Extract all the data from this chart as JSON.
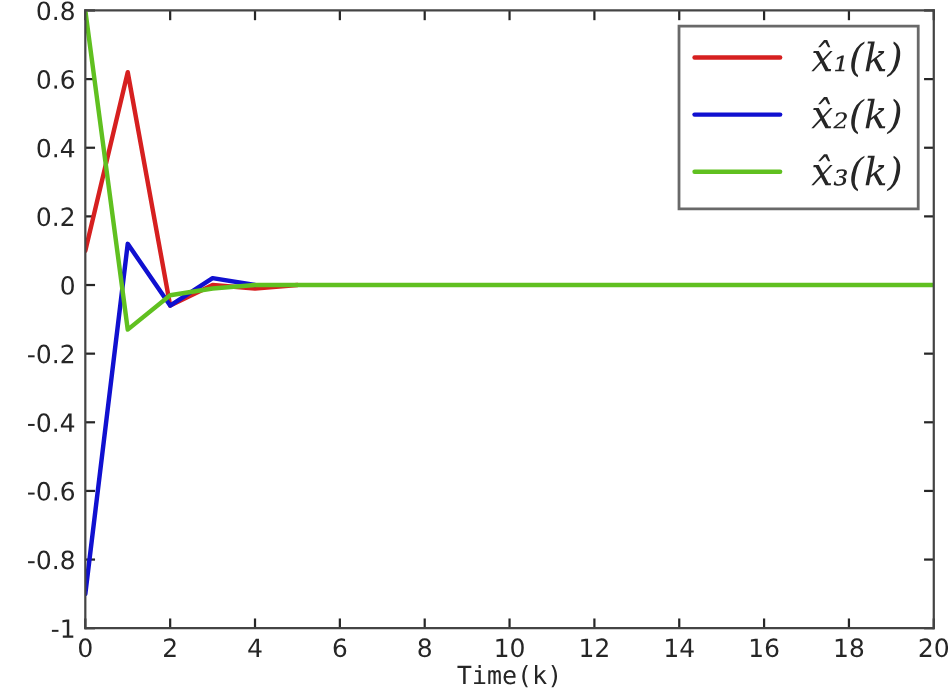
{
  "chart_data": {
    "type": "line",
    "xlabel": "Time(k)",
    "x": [
      0,
      1,
      2,
      3,
      4,
      5,
      6,
      7,
      8,
      9,
      10,
      11,
      12,
      13,
      14,
      15,
      16,
      17,
      18,
      19,
      20
    ],
    "series": [
      {
        "name": "x̂₁(k)",
        "color": "#d62020",
        "values": [
          0.1,
          0.62,
          -0.06,
          0.0,
          -0.01,
          0,
          null,
          null,
          null,
          null,
          null,
          null,
          null,
          null,
          null,
          null,
          null,
          null,
          null,
          null,
          null
        ]
      },
      {
        "name": "x̂₂(k)",
        "color": "#1010d0",
        "values": [
          -0.9,
          0.12,
          -0.06,
          0.02,
          0.0,
          null,
          null,
          null,
          null,
          null,
          null,
          null,
          null,
          null,
          null,
          null,
          null,
          null,
          null,
          null,
          null
        ]
      },
      {
        "name": "x̂₃(k)",
        "color": "#60c020",
        "values": [
          0.8,
          -0.13,
          -0.03,
          -0.01,
          0,
          0,
          0,
          0,
          0,
          0,
          0,
          0,
          0,
          0,
          0,
          0,
          0,
          0,
          0,
          0,
          0
        ]
      }
    ],
    "xlim": [
      0,
      20
    ],
    "xticks": [
      0,
      2,
      4,
      6,
      8,
      10,
      12,
      14,
      16,
      18,
      20
    ],
    "ylim": [
      -1,
      0.8
    ],
    "yticks": [
      -1,
      -0.8,
      -0.6,
      -0.4,
      -0.2,
      0,
      0.2,
      0.4,
      0.6,
      0.8
    ],
    "legend": "top right",
    "grid": false,
    "marker": "none",
    "line_style": "solid"
  }
}
